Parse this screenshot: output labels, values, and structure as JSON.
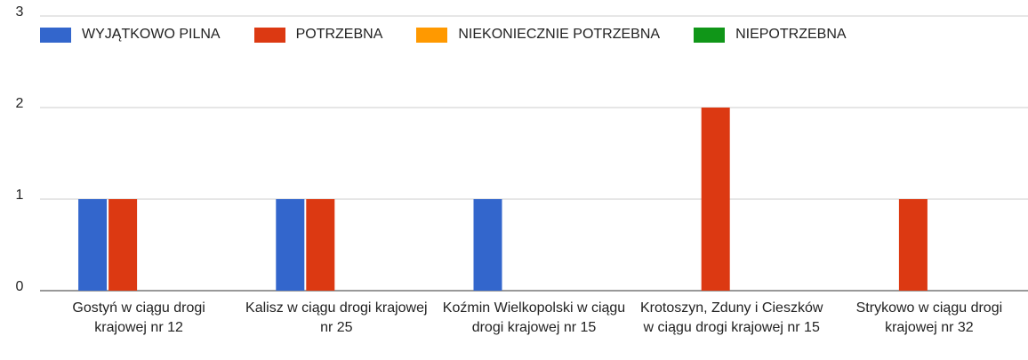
{
  "chart_data": {
    "type": "bar",
    "categories": [
      "Gostyń w ciągu drogi krajowej nr 12",
      "Kalisz w ciągu drogi krajowej nr 25",
      "Koźmin Wielkopolski w ciągu drogi krajowej nr 15",
      "Krotoszyn, Zduny i Cieszków w ciągu drogi krajowej nr 15",
      "Strykowo w ciągu drogi krajowej nr 32"
    ],
    "series": [
      {
        "name": "WYJĄTKOWO PILNA",
        "color": "#3366cc",
        "values": [
          1,
          1,
          1,
          0,
          0
        ]
      },
      {
        "name": "POTRZEBNA",
        "color": "#dc3912",
        "values": [
          1,
          1,
          0,
          2,
          1
        ]
      },
      {
        "name": "NIEKONIECZNIE POTRZEBNA",
        "color": "#ff9900",
        "values": [
          0,
          0,
          0,
          0,
          0
        ]
      },
      {
        "name": "NIEPOTRZEBNA",
        "color": "#109618",
        "values": [
          0,
          0,
          0,
          0,
          0
        ]
      }
    ],
    "ylim": [
      0,
      3
    ],
    "yticks": [
      0,
      1,
      2,
      3
    ],
    "grid": true,
    "legend": "top"
  }
}
